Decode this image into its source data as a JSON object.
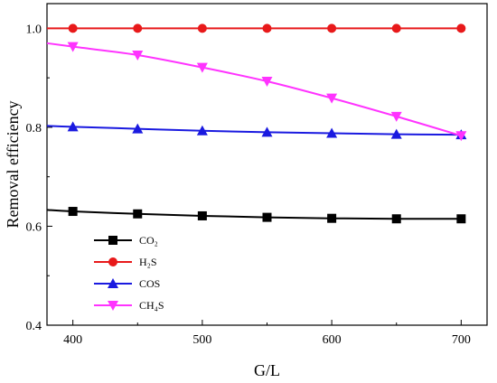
{
  "chart_data": {
    "type": "line",
    "xlabel": "G/L",
    "ylabel": "Removal efficiency",
    "xlim": [
      380,
      720
    ],
    "ylim": [
      0.4,
      1.05
    ],
    "x_ticks": [
      400,
      500,
      600,
      700
    ],
    "x_minor_ticks": [
      450,
      550,
      650
    ],
    "y_ticks": [
      0.4,
      0.6,
      0.8,
      1.0
    ],
    "y_tick_labels": [
      "0.4",
      "0.6",
      "0.8",
      "1.0"
    ],
    "grid": false,
    "legend_position": "bottom-left",
    "series": [
      {
        "name": "CO₂",
        "color": "#000000",
        "marker": "square",
        "x": [
          400,
          450,
          500,
          550,
          600,
          650,
          700
        ],
        "y": [
          0.63,
          0.625,
          0.621,
          0.618,
          0.616,
          0.615,
          0.615
        ],
        "curve_x": [
          380,
          400,
          450,
          500,
          550,
          600,
          650,
          700
        ],
        "curve_y": [
          0.633,
          0.63,
          0.625,
          0.621,
          0.618,
          0.616,
          0.615,
          0.615
        ]
      },
      {
        "name": "H₂S",
        "color": "#e8191a",
        "marker": "circle",
        "x": [
          400,
          450,
          500,
          550,
          600,
          650,
          700
        ],
        "y": [
          1.0,
          1.0,
          1.0,
          1.0,
          1.0,
          1.0,
          1.0
        ],
        "curve_x": [
          380,
          400,
          450,
          500,
          550,
          600,
          650,
          700
        ],
        "curve_y": [
          1.0,
          1.0,
          1.0,
          1.0,
          1.0,
          1.0,
          1.0,
          1.0
        ]
      },
      {
        "name": "COS",
        "color": "#1a1ae0",
        "marker": "triangle-up",
        "x": [
          400,
          450,
          500,
          550,
          600,
          650,
          700
        ],
        "y": [
          0.801,
          0.797,
          0.793,
          0.79,
          0.788,
          0.786,
          0.785
        ],
        "curve_x": [
          380,
          400,
          450,
          500,
          550,
          600,
          650,
          700
        ],
        "curve_y": [
          0.803,
          0.801,
          0.797,
          0.793,
          0.79,
          0.788,
          0.786,
          0.785
        ]
      },
      {
        "name": "CH₄S",
        "color": "#ff33ff",
        "marker": "triangle-down",
        "x": [
          400,
          450,
          500,
          550,
          600,
          650,
          700
        ],
        "y": [
          0.963,
          0.946,
          0.921,
          0.893,
          0.859,
          0.822,
          0.783
        ],
        "curve_x": [
          380,
          400,
          450,
          500,
          550,
          600,
          650,
          700
        ],
        "curve_y": [
          0.97,
          0.963,
          0.946,
          0.921,
          0.893,
          0.859,
          0.822,
          0.783
        ]
      }
    ]
  }
}
